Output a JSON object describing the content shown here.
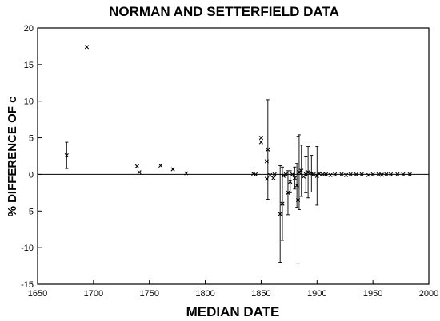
{
  "chart_data": {
    "type": "scatter",
    "title": "NORMAN AND SETTERFIELD DATA",
    "xlabel": "MEDIAN DATE",
    "ylabel": "% DIFFERENCE OF c",
    "xlim": [
      1650,
      2000
    ],
    "ylim": [
      -15,
      20
    ],
    "xticks": [
      1650,
      1700,
      1750,
      1800,
      1850,
      1900,
      1950,
      2000
    ],
    "yticks": [
      -15,
      -10,
      -5,
      0,
      5,
      10,
      15,
      20
    ],
    "grid": false,
    "zero_line": true,
    "marker": "x",
    "points": [
      {
        "x": 1676,
        "y": 2.6,
        "err": 1.8
      },
      {
        "x": 1694,
        "y": 17.4
      },
      {
        "x": 1739,
        "y": 1.1
      },
      {
        "x": 1741,
        "y": 0.3
      },
      {
        "x": 1760,
        "y": 1.2
      },
      {
        "x": 1771,
        "y": 0.7
      },
      {
        "x": 1783,
        "y": 0.15
      },
      {
        "x": 1843,
        "y": 0.1
      },
      {
        "x": 1845,
        "y": 0.0
      },
      {
        "x": 1850,
        "y": 5.0
      },
      {
        "x": 1850,
        "y": 4.4
      },
      {
        "x": 1855,
        "y": 1.8
      },
      {
        "x": 1856,
        "y": 3.4,
        "err": 6.8
      },
      {
        "x": 1855,
        "y": -0.6
      },
      {
        "x": 1858,
        "y": -0.1
      },
      {
        "x": 1861,
        "y": -0.5
      },
      {
        "x": 1862,
        "y": 0.0
      },
      {
        "x": 1867,
        "y": -5.4,
        "err": 6.6
      },
      {
        "x": 1869,
        "y": -4.0,
        "err": 5.0
      },
      {
        "x": 1870,
        "y": -0.2
      },
      {
        "x": 1872,
        "y": 0.0
      },
      {
        "x": 1874,
        "y": -2.5,
        "err": 3.0
      },
      {
        "x": 1876,
        "y": -1.0,
        "err": 1.5
      },
      {
        "x": 1878,
        "y": 0.0
      },
      {
        "x": 1880,
        "y": -0.5,
        "err": 1.5
      },
      {
        "x": 1882,
        "y": -1.5,
        "err": 3.0
      },
      {
        "x": 1883,
        "y": -3.5,
        "err": 8.7
      },
      {
        "x": 1884,
        "y": 0.3,
        "err": 5.1
      },
      {
        "x": 1886,
        "y": 0.5,
        "err": 3.5
      },
      {
        "x": 1888,
        "y": -0.3
      },
      {
        "x": 1890,
        "y": 0.0,
        "err": 2.5
      },
      {
        "x": 1892,
        "y": 0.3,
        "err": 3.5
      },
      {
        "x": 1895,
        "y": 0.1,
        "err": 2.5
      },
      {
        "x": 1897,
        "y": 0.0
      },
      {
        "x": 1900,
        "y": -0.2,
        "err": 4.0
      },
      {
        "x": 1902,
        "y": 0.1
      },
      {
        "x": 1905,
        "y": 0.0
      },
      {
        "x": 1908,
        "y": 0.0
      },
      {
        "x": 1912,
        "y": -0.1
      },
      {
        "x": 1916,
        "y": 0.0
      },
      {
        "x": 1922,
        "y": 0.0
      },
      {
        "x": 1926,
        "y": -0.1
      },
      {
        "x": 1930,
        "y": 0.0
      },
      {
        "x": 1935,
        "y": 0.0
      },
      {
        "x": 1940,
        "y": 0.0
      },
      {
        "x": 1946,
        "y": -0.1
      },
      {
        "x": 1950,
        "y": 0.0
      },
      {
        "x": 1955,
        "y": 0.0
      },
      {
        "x": 1958,
        "y": -0.05
      },
      {
        "x": 1962,
        "y": 0.0
      },
      {
        "x": 1966,
        "y": 0.0
      },
      {
        "x": 1972,
        "y": 0.0
      },
      {
        "x": 1977,
        "y": 0.0
      },
      {
        "x": 1983,
        "y": 0.0
      }
    ]
  }
}
